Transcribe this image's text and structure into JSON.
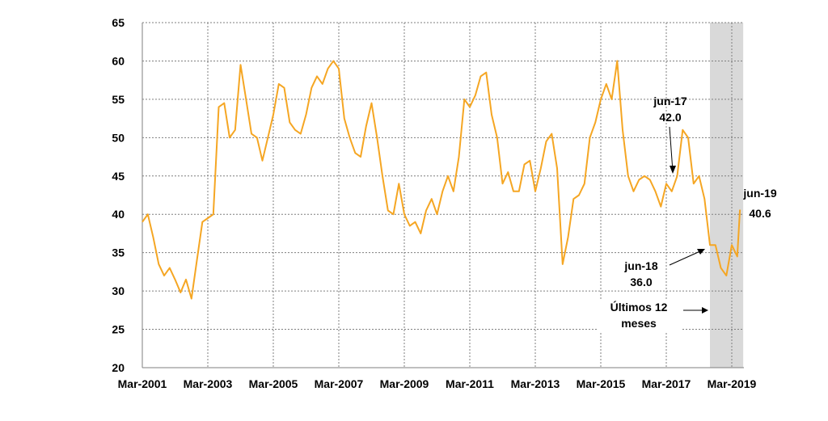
{
  "chart_data": {
    "type": "line",
    "title": "",
    "xlabel": "",
    "ylabel": "",
    "ylim": [
      20,
      65
    ],
    "y_ticks": [
      "20",
      "25",
      "30",
      "35",
      "40",
      "45",
      "50",
      "55",
      "60",
      "65"
    ],
    "x_ticks": [
      "Mar-2001",
      "Mar-2003",
      "Mar-2005",
      "Mar-2007",
      "Mar-2009",
      "Mar-2011",
      "Mar-2013",
      "Mar-2015",
      "Mar-2017",
      "Mar-2019"
    ],
    "grid": "dashed, vertical and horizontal",
    "shaded_region": {
      "from": "Jul-2018",
      "to": "Jun-2019",
      "color": "#d9d9d9"
    },
    "series": [
      {
        "color": "#f5a623",
        "x": [
          "Mar-2001",
          "May-2001",
          "Jul-2001",
          "Sep-2001",
          "Nov-2001",
          "Jan-2002",
          "Mar-2002",
          "May-2002",
          "Jul-2002",
          "Sep-2002",
          "Nov-2002",
          "Jan-2003",
          "Mar-2003",
          "May-2003",
          "Jul-2003",
          "Sep-2003",
          "Nov-2003",
          "Jan-2004",
          "Mar-2004",
          "May-2004",
          "Jul-2004",
          "Sep-2004",
          "Nov-2004",
          "Jan-2005",
          "Mar-2005",
          "May-2005",
          "Jul-2005",
          "Sep-2005",
          "Nov-2005",
          "Jan-2006",
          "Mar-2006",
          "May-2006",
          "Jul-2006",
          "Sep-2006",
          "Nov-2006",
          "Jan-2007",
          "Mar-2007",
          "May-2007",
          "Jul-2007",
          "Sep-2007",
          "Nov-2007",
          "Jan-2008",
          "Mar-2008",
          "May-2008",
          "Jul-2008",
          "Sep-2008",
          "Nov-2008",
          "Jan-2009",
          "Mar-2009",
          "May-2009",
          "Jul-2009",
          "Sep-2009",
          "Nov-2009",
          "Jan-2010",
          "Mar-2010",
          "May-2010",
          "Jul-2010",
          "Sep-2010",
          "Nov-2010",
          "Jan-2011",
          "Mar-2011",
          "May-2011",
          "Jul-2011",
          "Sep-2011",
          "Nov-2011",
          "Jan-2012",
          "Mar-2012",
          "May-2012",
          "Jul-2012",
          "Sep-2012",
          "Nov-2012",
          "Jan-2013",
          "Mar-2013",
          "May-2013",
          "Jul-2013",
          "Sep-2013",
          "Nov-2013",
          "Jan-2014",
          "Mar-2014",
          "May-2014",
          "Jul-2014",
          "Sep-2014",
          "Nov-2014",
          "Jan-2015",
          "Mar-2015",
          "May-2015",
          "Jul-2015",
          "Sep-2015",
          "Nov-2015",
          "Jan-2016",
          "Mar-2016",
          "May-2016",
          "Jul-2016",
          "Sep-2016",
          "Nov-2016",
          "Jan-2017",
          "Mar-2017",
          "May-2017",
          "Jul-2017",
          "Sep-2017",
          "Nov-2017",
          "Jan-2018",
          "Mar-2018",
          "May-2018",
          "Jul-2018",
          "Sep-2018",
          "Nov-2018",
          "Jan-2019",
          "Mar-2019",
          "May-2019",
          "Jun-2019"
        ],
        "values": [
          39.0,
          40.0,
          37.0,
          33.5,
          32.0,
          33.0,
          31.5,
          29.8,
          31.5,
          29.0,
          34.0,
          39.0,
          39.5,
          40.0,
          54.0,
          54.5,
          50.0,
          51.0,
          59.5,
          55.0,
          50.5,
          50.0,
          47.0,
          50.0,
          53.0,
          57.0,
          56.5,
          52.0,
          51.0,
          50.5,
          53.0,
          56.5,
          58.0,
          57.0,
          59.0,
          60.0,
          59.0,
          52.5,
          50.0,
          48.0,
          47.5,
          51.5,
          54.5,
          50.0,
          45.0,
          40.5,
          40.0,
          44.0,
          40.0,
          38.5,
          39.0,
          37.5,
          40.5,
          42.0,
          40.0,
          43.0,
          45.0,
          43.0,
          47.5,
          55.0,
          54.0,
          55.5,
          58.0,
          58.5,
          53.0,
          50.0,
          44.0,
          45.5,
          43.0,
          43.0,
          46.5,
          47.0,
          43.0,
          46.0,
          49.5,
          50.5,
          46.0,
          33.5,
          37.0,
          42.0,
          42.5,
          44.0,
          50.0,
          52.0,
          55.0,
          57.0,
          55.0,
          60.0,
          51.0,
          45.0,
          43.0,
          44.5,
          45.0,
          44.5,
          43.0,
          41.0,
          44.0,
          43.0,
          45.0,
          51.0,
          50.0,
          44.0,
          45.0,
          42.0,
          36.0,
          36.0,
          33.0,
          32.0,
          36.0,
          34.5,
          40.6
        ]
      }
    ],
    "annotations": [
      {
        "id": "jun17",
        "label": "jun-17",
        "value": "42.0",
        "x": "Jun-2017",
        "y": 42.0
      },
      {
        "id": "jun18",
        "label": "jun-18",
        "value": "36.0",
        "x": "Jun-2018",
        "y": 36.0
      },
      {
        "id": "jun19",
        "label": "jun-19",
        "value": "40.6",
        "x": "Jun-2019",
        "y": 40.6
      }
    ],
    "shaded_label": [
      "Últimos 12",
      "meses"
    ]
  }
}
